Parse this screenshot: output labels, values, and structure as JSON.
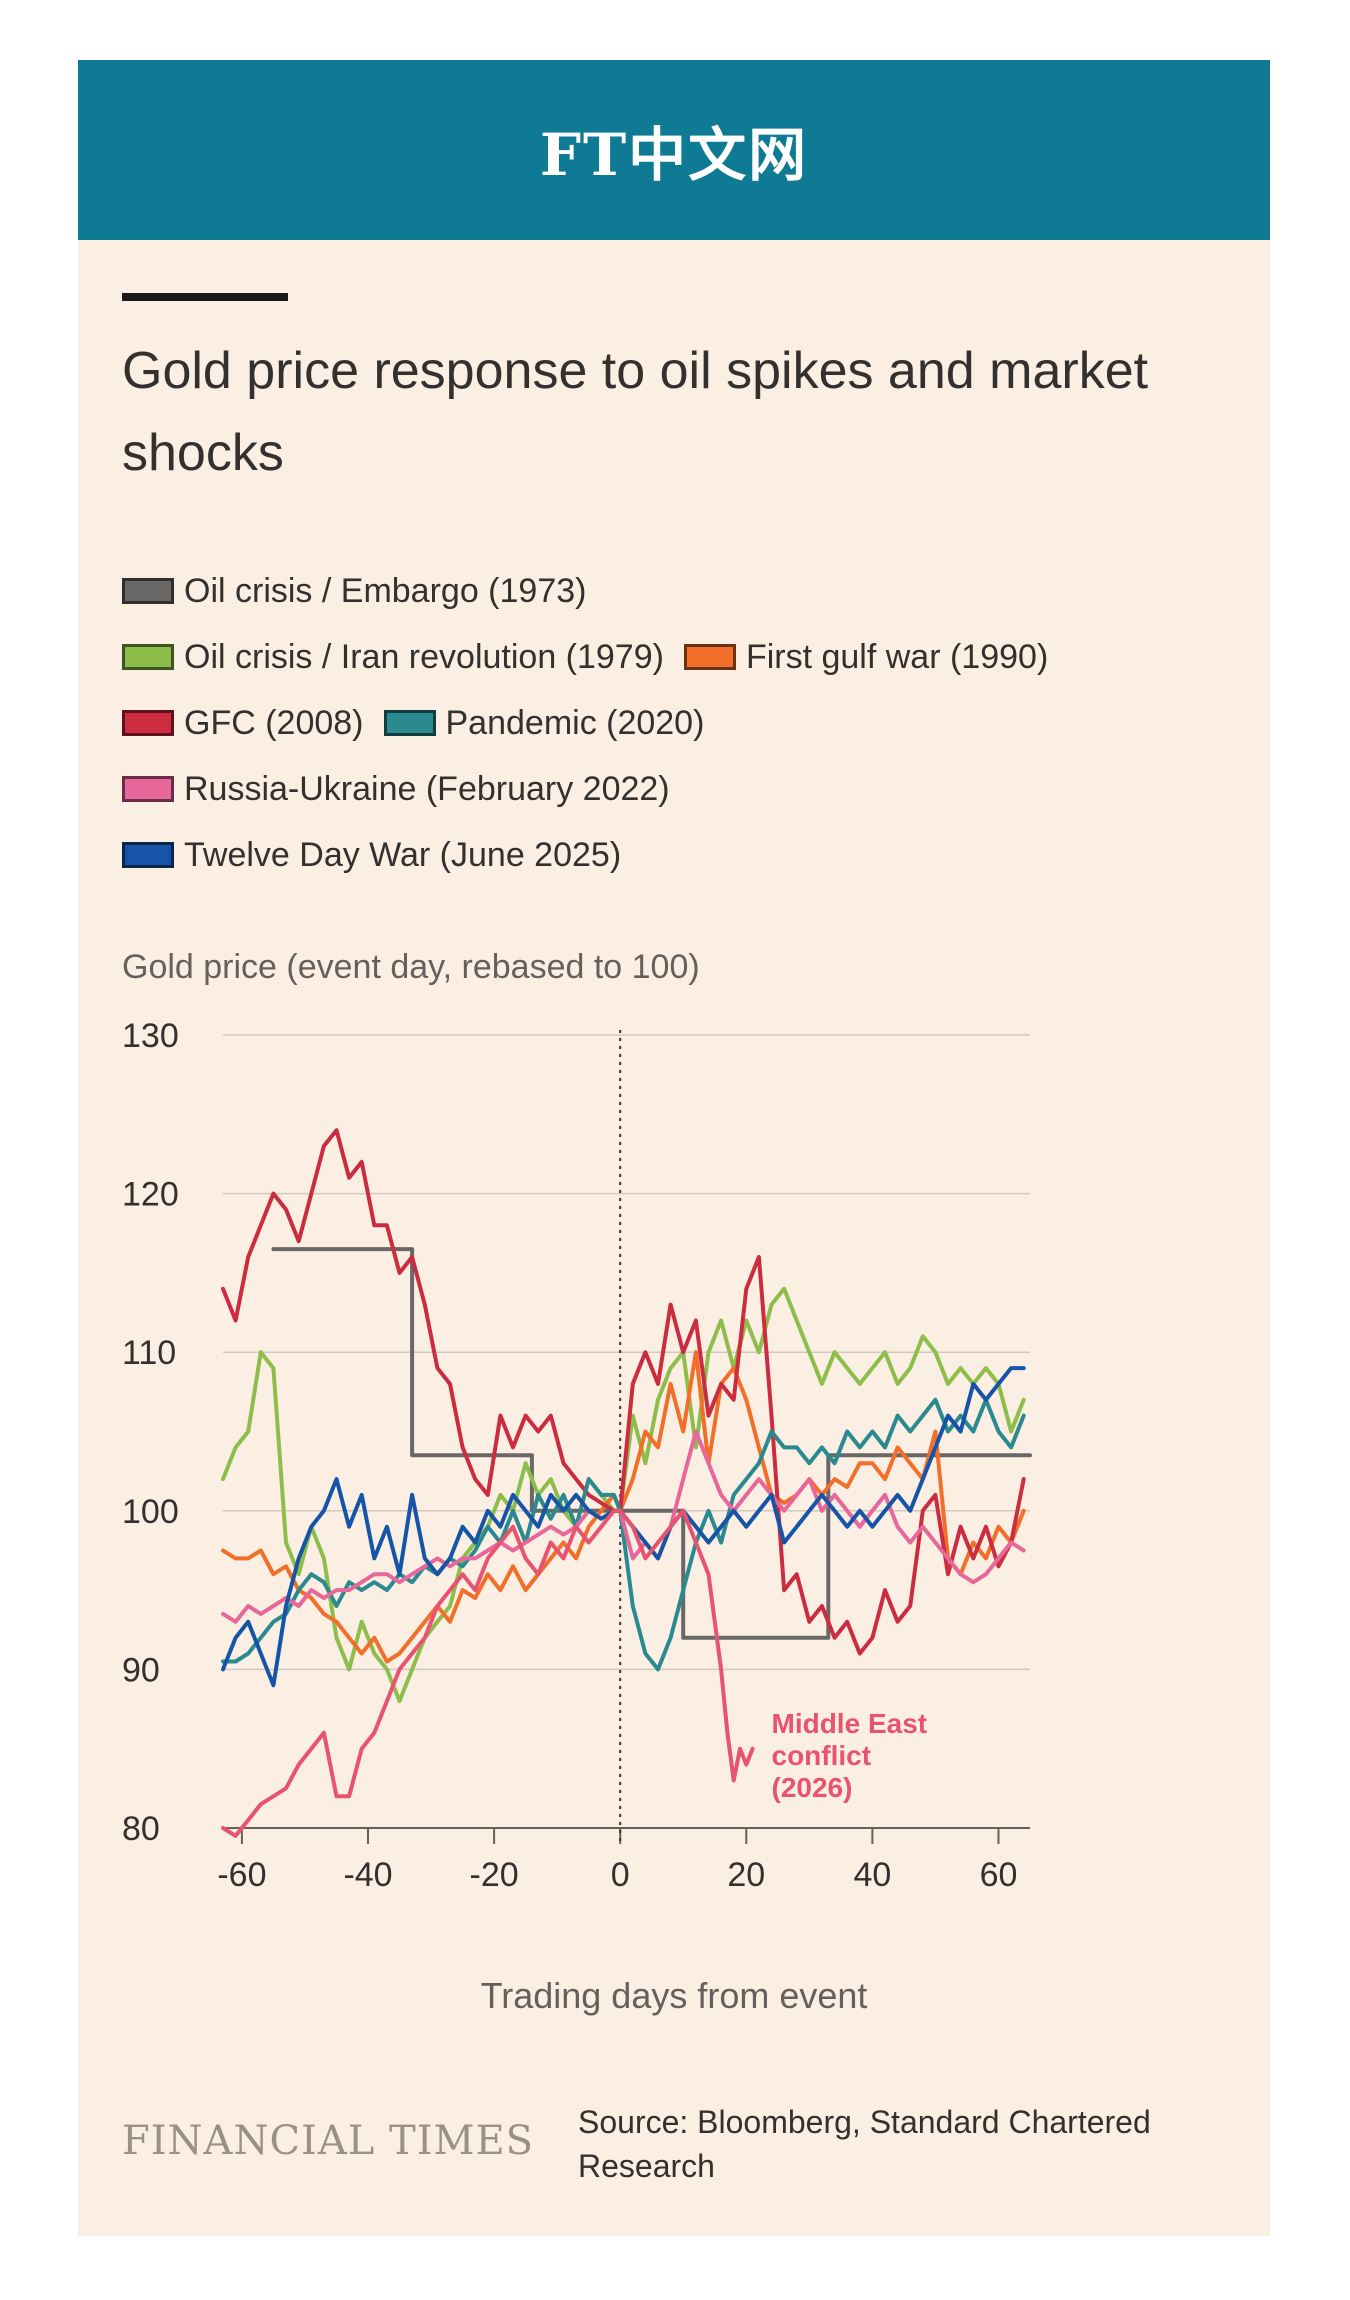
{
  "header": {
    "brand": "FT中文网"
  },
  "chart_data": {
    "type": "line",
    "title": "Gold price response to oil spikes and market shocks",
    "ylabel": "Gold price (event day, rebased to 100)",
    "xlabel": "Trading days from event",
    "xlim": [
      -63,
      65
    ],
    "ylim": [
      80,
      130
    ],
    "xticks": [
      -60,
      -40,
      -20,
      0,
      20,
      40,
      60
    ],
    "xtick_labels": [
      "-60",
      "-40",
      "-20",
      "0",
      "20",
      "40",
      "60"
    ],
    "yticks": [
      80,
      90,
      100,
      110,
      120,
      130
    ],
    "ytick_labels": [
      "80",
      "90",
      "100",
      "110",
      "120",
      "130"
    ],
    "grid": "horizontal",
    "event_line_x": 0,
    "annotation": {
      "text": [
        "Middle East",
        "conflict",
        "(2026)"
      ],
      "series": "Middle East conflict (2026)",
      "color": "#e8536f"
    },
    "series": [
      {
        "name": "Oil crisis / Embargo (1973)",
        "color": "#6a6767",
        "x": [
          -55,
          -33,
          -33,
          -14,
          -14,
          0,
          10,
          10,
          33,
          33,
          65
        ],
        "values": [
          116.5,
          116.5,
          103.5,
          103.5,
          100,
          100,
          100,
          92,
          92,
          103.5,
          103.5
        ]
      },
      {
        "name": "Oil crisis / Iran revolution (1979)",
        "color": "#8dbd4a",
        "x": [
          -63,
          -61,
          -59,
          -57,
          -55,
          -53,
          -51,
          -49,
          -47,
          -45,
          -43,
          -41,
          -39,
          -37,
          -35,
          -33,
          -31,
          -29,
          -27,
          -25,
          -23,
          -21,
          -19,
          -17,
          -15,
          -13,
          -11,
          -9,
          -7,
          -5,
          -3,
          -1,
          0,
          2,
          4,
          6,
          8,
          10,
          12,
          14,
          16,
          18,
          20,
          22,
          24,
          26,
          28,
          30,
          32,
          34,
          36,
          38,
          40,
          42,
          44,
          46,
          48,
          50,
          52,
          54,
          56,
          58,
          60,
          62,
          64
        ],
        "values": [
          102,
          104,
          105,
          110,
          109,
          98,
          96,
          99,
          97,
          92,
          90,
          93,
          91,
          90,
          88,
          90,
          92,
          93,
          94,
          97,
          98,
          99,
          101,
          100,
          103,
          101,
          102,
          100,
          99,
          102,
          101,
          100,
          100,
          106,
          103,
          107,
          109,
          110,
          104,
          110,
          112,
          109,
          112,
          110,
          113,
          114,
          112,
          110,
          108,
          110,
          109,
          108,
          109,
          110,
          108,
          109,
          111,
          110,
          108,
          109,
          108,
          109,
          108,
          105,
          107
        ]
      },
      {
        "name": "First gulf war (1990)",
        "color": "#f26f2a",
        "x": [
          -63,
          -61,
          -59,
          -57,
          -55,
          -53,
          -51,
          -49,
          -47,
          -45,
          -43,
          -41,
          -39,
          -37,
          -35,
          -33,
          -31,
          -29,
          -27,
          -25,
          -23,
          -21,
          -19,
          -17,
          -15,
          -13,
          -11,
          -9,
          -7,
          -5,
          -3,
          -1,
          0,
          2,
          4,
          6,
          8,
          10,
          12,
          14,
          16,
          18,
          20,
          22,
          24,
          26,
          28,
          30,
          32,
          34,
          36,
          38,
          40,
          42,
          44,
          46,
          48,
          50,
          52,
          54,
          56,
          58,
          60,
          62,
          64
        ],
        "values": [
          97.5,
          97,
          97,
          97.5,
          96,
          96.5,
          95,
          94.5,
          93.5,
          93,
          92,
          91,
          92,
          90.5,
          91,
          92,
          93,
          94,
          93,
          95,
          94.5,
          96,
          95,
          96.5,
          95,
          96,
          97,
          98,
          97,
          99,
          100,
          101,
          100,
          102,
          105,
          104,
          108,
          105,
          110,
          103,
          108,
          109,
          107,
          104,
          101,
          100.5,
          101,
          102,
          101,
          102,
          101.5,
          103,
          103,
          102,
          104,
          103,
          102,
          105,
          97,
          96,
          98,
          97,
          99,
          98,
          100
        ]
      },
      {
        "name": "GFC (2008)",
        "color": "#cc2c3f",
        "x": [
          -63,
          -61,
          -59,
          -57,
          -55,
          -53,
          -51,
          -49,
          -47,
          -45,
          -43,
          -41,
          -39,
          -37,
          -35,
          -33,
          -31,
          -29,
          -27,
          -25,
          -23,
          -21,
          -19,
          -17,
          -15,
          -13,
          -11,
          -9,
          -7,
          -5,
          -3,
          -1,
          0,
          2,
          4,
          6,
          8,
          10,
          12,
          14,
          16,
          18,
          20,
          22,
          24,
          26,
          28,
          30,
          32,
          34,
          36,
          38,
          40,
          42,
          44,
          46,
          48,
          50,
          52,
          54,
          56,
          58,
          60,
          62,
          64
        ],
        "values": [
          114,
          112,
          116,
          118,
          120,
          119,
          117,
          120,
          123,
          124,
          121,
          122,
          118,
          118,
          115,
          116,
          113,
          109,
          108,
          104,
          102,
          101,
          106,
          104,
          106,
          105,
          106,
          103,
          102,
          101,
          100.5,
          100,
          100,
          108,
          110,
          108,
          113,
          110,
          112,
          106,
          108,
          107,
          114,
          116,
          106,
          95,
          96,
          93,
          94,
          92,
          93,
          91,
          92,
          95,
          93,
          94,
          100,
          101,
          96,
          99,
          97,
          99,
          96.5,
          98,
          102
        ]
      },
      {
        "name": "Pandemic (2020)",
        "color": "#2a8a8f",
        "x": [
          -63,
          -61,
          -59,
          -57,
          -55,
          -53,
          -51,
          -49,
          -47,
          -45,
          -43,
          -41,
          -39,
          -37,
          -35,
          -33,
          -31,
          -29,
          -27,
          -25,
          -23,
          -21,
          -19,
          -17,
          -15,
          -13,
          -11,
          -9,
          -7,
          -5,
          -3,
          -1,
          0,
          2,
          4,
          6,
          8,
          10,
          12,
          14,
          16,
          18,
          20,
          22,
          24,
          26,
          28,
          30,
          32,
          34,
          36,
          38,
          40,
          42,
          44,
          46,
          48,
          50,
          52,
          54,
          56,
          58,
          60,
          62,
          64
        ],
        "values": [
          90.5,
          90.5,
          91,
          92,
          93,
          93.5,
          95,
          96,
          95.5,
          94,
          95.5,
          95,
          95.5,
          95,
          96,
          95.5,
          96.5,
          96,
          97,
          96.5,
          97.5,
          99,
          98,
          100,
          98,
          101,
          99.5,
          101,
          99,
          102,
          101,
          101,
          100,
          94,
          91,
          90,
          92,
          95,
          98,
          100,
          98,
          101,
          102,
          103,
          105,
          104,
          104,
          103,
          104,
          103,
          105,
          104,
          105,
          104,
          106,
          105,
          106,
          107,
          105,
          106,
          105,
          107,
          105,
          104,
          106
        ]
      },
      {
        "name": "Russia-Ukraine (February 2022)",
        "color": "#e8679a",
        "x": [
          -63,
          -61,
          -59,
          -57,
          -55,
          -53,
          -51,
          -49,
          -47,
          -45,
          -43,
          -41,
          -39,
          -37,
          -35,
          -33,
          -31,
          -29,
          -27,
          -25,
          -23,
          -21,
          -19,
          -17,
          -15,
          -13,
          -11,
          -9,
          -7,
          -5,
          -3,
          -1,
          0,
          2,
          4,
          6,
          8,
          10,
          12,
          14,
          16,
          18,
          20,
          22,
          24,
          26,
          28,
          30,
          32,
          34,
          36,
          38,
          40,
          42,
          44,
          46,
          48,
          50,
          52,
          54,
          56,
          58,
          60,
          62,
          64
        ],
        "values": [
          93.5,
          93,
          94,
          93.5,
          94,
          94.5,
          94,
          95,
          94.5,
          95,
          95,
          95.5,
          96,
          96,
          95.5,
          96,
          96.5,
          97,
          96.5,
          97,
          97,
          97.5,
          98,
          97.5,
          98,
          98.5,
          99,
          98.5,
          99,
          100,
          99.5,
          100,
          100,
          97,
          98,
          97,
          99,
          102,
          105,
          103,
          101,
          100,
          101,
          102,
          101,
          100,
          101,
          102,
          100,
          101,
          100,
          99,
          100,
          101,
          99,
          98,
          99,
          98,
          97,
          96,
          95.5,
          96,
          97,
          98,
          97.5
        ]
      },
      {
        "name": "Twelve Day War (June 2025)",
        "color": "#1554a6",
        "x": [
          -63,
          -61,
          -59,
          -57,
          -55,
          -53,
          -51,
          -49,
          -47,
          -45,
          -43,
          -41,
          -39,
          -37,
          -35,
          -33,
          -31,
          -29,
          -27,
          -25,
          -23,
          -21,
          -19,
          -17,
          -15,
          -13,
          -11,
          -9,
          -7,
          -5,
          -3,
          -1,
          0,
          2,
          4,
          6,
          8,
          10,
          12,
          14,
          16,
          18,
          20,
          22,
          24,
          26,
          28,
          30,
          32,
          34,
          36,
          38,
          40,
          42,
          44,
          46,
          48,
          50,
          52,
          54,
          56,
          58,
          60,
          62,
          64
        ],
        "values": [
          90,
          92,
          93,
          91,
          89,
          94,
          97,
          99,
          100,
          102,
          99,
          101,
          97,
          99,
          96,
          101,
          97,
          96,
          97,
          99,
          98,
          100,
          99,
          101,
          100,
          99,
          101,
          100,
          101,
          100,
          99.5,
          100,
          100,
          99,
          98,
          97,
          99,
          100,
          99,
          98,
          99,
          100,
          99,
          100,
          101,
          98,
          99,
          100,
          101,
          100,
          99,
          100,
          99,
          100,
          101,
          100,
          102,
          104,
          106,
          105,
          108,
          107,
          108,
          109,
          109
        ]
      },
      {
        "name": "Middle East conflict (2026)",
        "color": "#e8536f",
        "x": [
          -63,
          -61,
          -59,
          -57,
          -55,
          -53,
          -51,
          -49,
          -47,
          -45,
          -43,
          -41,
          -39,
          -37,
          -35,
          -33,
          -31,
          -29,
          -27,
          -25,
          -23,
          -21,
          -19,
          -17,
          -15,
          -13,
          -11,
          -9,
          -7,
          -5,
          -3,
          -1,
          0,
          2,
          4,
          6,
          8,
          10,
          12,
          14,
          16,
          17,
          18,
          19,
          20,
          21
        ],
        "values": [
          80,
          79.5,
          80.5,
          81.5,
          82,
          82.5,
          84,
          85,
          86,
          82,
          82,
          85,
          86,
          88,
          90,
          91,
          92,
          94,
          95,
          96,
          95,
          97,
          98,
          99,
          97,
          96,
          98,
          97,
          99,
          98,
          99,
          100,
          100,
          99,
          97,
          98,
          99,
          100,
          98,
          96,
          90,
          86,
          83,
          85,
          84,
          85
        ]
      }
    ]
  },
  "footer": {
    "logo": "FINANCIAL TIMES",
    "source_line1": "Source: Bloomberg, Standard Chartered",
    "source_line2": "Research"
  }
}
